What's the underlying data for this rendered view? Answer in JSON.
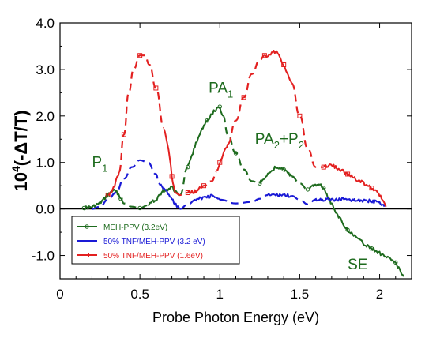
{
  "chart_data": {
    "type": "line",
    "title": "",
    "xlabel": "Probe Photon Energy (eV)",
    "ylabel": "10⁴(-ΔT/T)",
    "xlim": [
      0,
      2.2
    ],
    "ylim": [
      -1.5,
      4.0
    ],
    "xticks": [
      0,
      0.5,
      1,
      1.5,
      2
    ],
    "xtick_labels": [
      "0",
      "0.5",
      "1",
      "1.5",
      "2"
    ],
    "yticks": [
      -1.0,
      0.0,
      1.0,
      2.0,
      3.0,
      4.0
    ],
    "ytick_labels": [
      "-1.0",
      "0.0",
      "1.0",
      "2.0",
      "3.0",
      "4.0"
    ],
    "series": [
      {
        "name": "MEH-PPV (3.2eV)",
        "color": "#1e6b1e",
        "x": [
          0.15,
          0.2,
          0.25,
          0.3,
          0.33,
          0.36,
          0.38,
          0.4,
          0.45,
          0.5,
          0.55,
          0.6,
          0.65,
          0.7,
          0.75,
          0.8,
          0.85,
          0.9,
          0.92,
          0.95,
          0.98,
          1.0,
          1.02,
          1.05,
          1.1,
          1.15,
          1.2,
          1.25,
          1.3,
          1.35,
          1.4,
          1.45,
          1.5,
          1.55,
          1.58,
          1.62,
          1.65,
          1.7,
          1.75,
          1.8,
          1.85,
          1.9,
          1.95,
          2.0,
          2.05,
          2.1,
          2.15
        ],
        "y": [
          0.02,
          0.04,
          0.12,
          0.3,
          0.4,
          0.35,
          0.22,
          0.12,
          0.05,
          0.02,
          0.08,
          0.2,
          0.4,
          0.45,
          0.3,
          0.9,
          1.4,
          1.8,
          1.9,
          2.05,
          2.15,
          2.2,
          2.0,
          1.6,
          1.2,
          0.85,
          0.6,
          0.55,
          0.75,
          0.9,
          0.85,
          0.7,
          0.55,
          0.42,
          0.5,
          0.55,
          0.45,
          0.1,
          -0.2,
          -0.45,
          -0.6,
          -0.75,
          -0.85,
          -0.95,
          -1.05,
          -1.15,
          -1.45
        ],
        "segments": [
          {
            "from": 0.15,
            "to": 0.38,
            "style": "solid"
          },
          {
            "from": 0.38,
            "to": 0.55,
            "style": "dash"
          },
          {
            "from": 0.55,
            "to": 0.75,
            "style": "solid"
          },
          {
            "from": 0.75,
            "to": 0.8,
            "style": "dash"
          },
          {
            "from": 0.8,
            "to": 1.02,
            "style": "solid"
          },
          {
            "from": 1.02,
            "to": 1.25,
            "style": "dash"
          },
          {
            "from": 1.25,
            "to": 1.45,
            "style": "solid"
          },
          {
            "from": 1.45,
            "to": 1.58,
            "style": "dash"
          },
          {
            "from": 1.58,
            "to": 2.15,
            "style": "solid"
          }
        ]
      },
      {
        "name": "50% TNF/MEH-PPV (3.2 eV)",
        "color": "#1a1ad6",
        "x": [
          0.2,
          0.25,
          0.3,
          0.35,
          0.4,
          0.45,
          0.5,
          0.55,
          0.6,
          0.62,
          0.65,
          0.7,
          0.75,
          0.8,
          0.85,
          0.9,
          0.95,
          1.0,
          1.1,
          1.2,
          1.25,
          1.3,
          1.35,
          1.4,
          1.45,
          1.5,
          1.55,
          1.6,
          1.7,
          1.8,
          1.9,
          2.0,
          2.03
        ],
        "y": [
          0.0,
          0.05,
          0.2,
          0.35,
          0.65,
          0.9,
          1.05,
          1.0,
          0.75,
          0.55,
          0.45,
          0.2,
          0.0,
          0.1,
          0.2,
          0.25,
          0.28,
          0.2,
          0.12,
          0.15,
          0.22,
          0.3,
          0.3,
          0.3,
          0.28,
          0.2,
          0.1,
          0.2,
          0.2,
          0.2,
          0.18,
          0.15,
          0.05
        ],
        "segments": [
          {
            "from": 0.2,
            "to": 0.62,
            "style": "dash"
          },
          {
            "from": 0.62,
            "to": 0.75,
            "style": "solid"
          },
          {
            "from": 0.75,
            "to": 0.85,
            "style": "dash"
          },
          {
            "from": 0.85,
            "to": 1.0,
            "style": "solid"
          },
          {
            "from": 1.0,
            "to": 1.3,
            "style": "dash"
          },
          {
            "from": 1.3,
            "to": 1.45,
            "style": "solid"
          },
          {
            "from": 1.45,
            "to": 1.6,
            "style": "dash"
          },
          {
            "from": 1.6,
            "to": 2.03,
            "style": "solid"
          }
        ]
      },
      {
        "name": "50% TNF/MEH-PPV (1.6eV)",
        "color": "#e32020",
        "x": [
          0.3,
          0.33,
          0.37,
          0.4,
          0.43,
          0.46,
          0.5,
          0.53,
          0.56,
          0.6,
          0.65,
          0.68,
          0.7,
          0.72,
          0.75,
          0.8,
          0.85,
          0.88,
          0.9,
          0.95,
          0.98,
          1.0,
          1.05,
          1.1,
          1.15,
          1.2,
          1.25,
          1.28,
          1.3,
          1.35,
          1.4,
          1.42,
          1.45,
          1.5,
          1.55,
          1.6,
          1.65,
          1.7,
          1.75,
          1.8,
          1.85,
          1.9,
          1.95,
          2.0,
          2.04
        ],
        "y": [
          0.3,
          0.4,
          0.8,
          1.6,
          2.5,
          3.0,
          3.3,
          3.3,
          3.1,
          2.6,
          1.75,
          1.3,
          0.7,
          0.35,
          0.3,
          0.35,
          0.38,
          0.45,
          0.5,
          0.6,
          0.8,
          1.0,
          1.4,
          1.9,
          2.4,
          2.9,
          3.2,
          3.3,
          3.3,
          3.4,
          3.1,
          2.9,
          2.7,
          2.0,
          1.3,
          0.9,
          0.9,
          0.95,
          0.85,
          0.75,
          0.65,
          0.55,
          0.45,
          0.3,
          0.05
        ],
        "segments": [
          {
            "from": 0.3,
            "to": 0.37,
            "style": "solid"
          },
          {
            "from": 0.37,
            "to": 0.65,
            "style": "dash"
          },
          {
            "from": 0.65,
            "to": 0.72,
            "style": "solid"
          },
          {
            "from": 0.72,
            "to": 0.8,
            "style": "dash"
          },
          {
            "from": 0.8,
            "to": 0.88,
            "style": "solid"
          },
          {
            "from": 0.88,
            "to": 0.98,
            "style": "dash"
          },
          {
            "from": 0.98,
            "to": 1.05,
            "style": "solid"
          },
          {
            "from": 1.05,
            "to": 1.28,
            "style": "dash"
          },
          {
            "from": 1.28,
            "to": 1.45,
            "style": "solid"
          },
          {
            "from": 1.45,
            "to": 1.65,
            "style": "dash"
          },
          {
            "from": 1.65,
            "to": 2.04,
            "style": "solid"
          }
        ]
      }
    ],
    "annotations": [
      {
        "text": "P",
        "sub": "1",
        "x": 0.2,
        "y": 0.9
      },
      {
        "text": "PA",
        "sub": "1",
        "x": 0.93,
        "y": 2.5
      },
      {
        "text": "PA",
        "sub": "2",
        "mid": "+P",
        "sub2": "2",
        "x": 1.22,
        "y": 1.4
      },
      {
        "text": "SE",
        "sub": "",
        "x": 1.8,
        "y": -1.3
      }
    ],
    "legend": {
      "position": "bottom-left",
      "entries": [
        "MEH-PPV (3.2eV)",
        "50% TNF/MEH-PPV (3.2 eV)",
        "50% TNF/MEH-PPV (1.6eV)"
      ]
    }
  }
}
